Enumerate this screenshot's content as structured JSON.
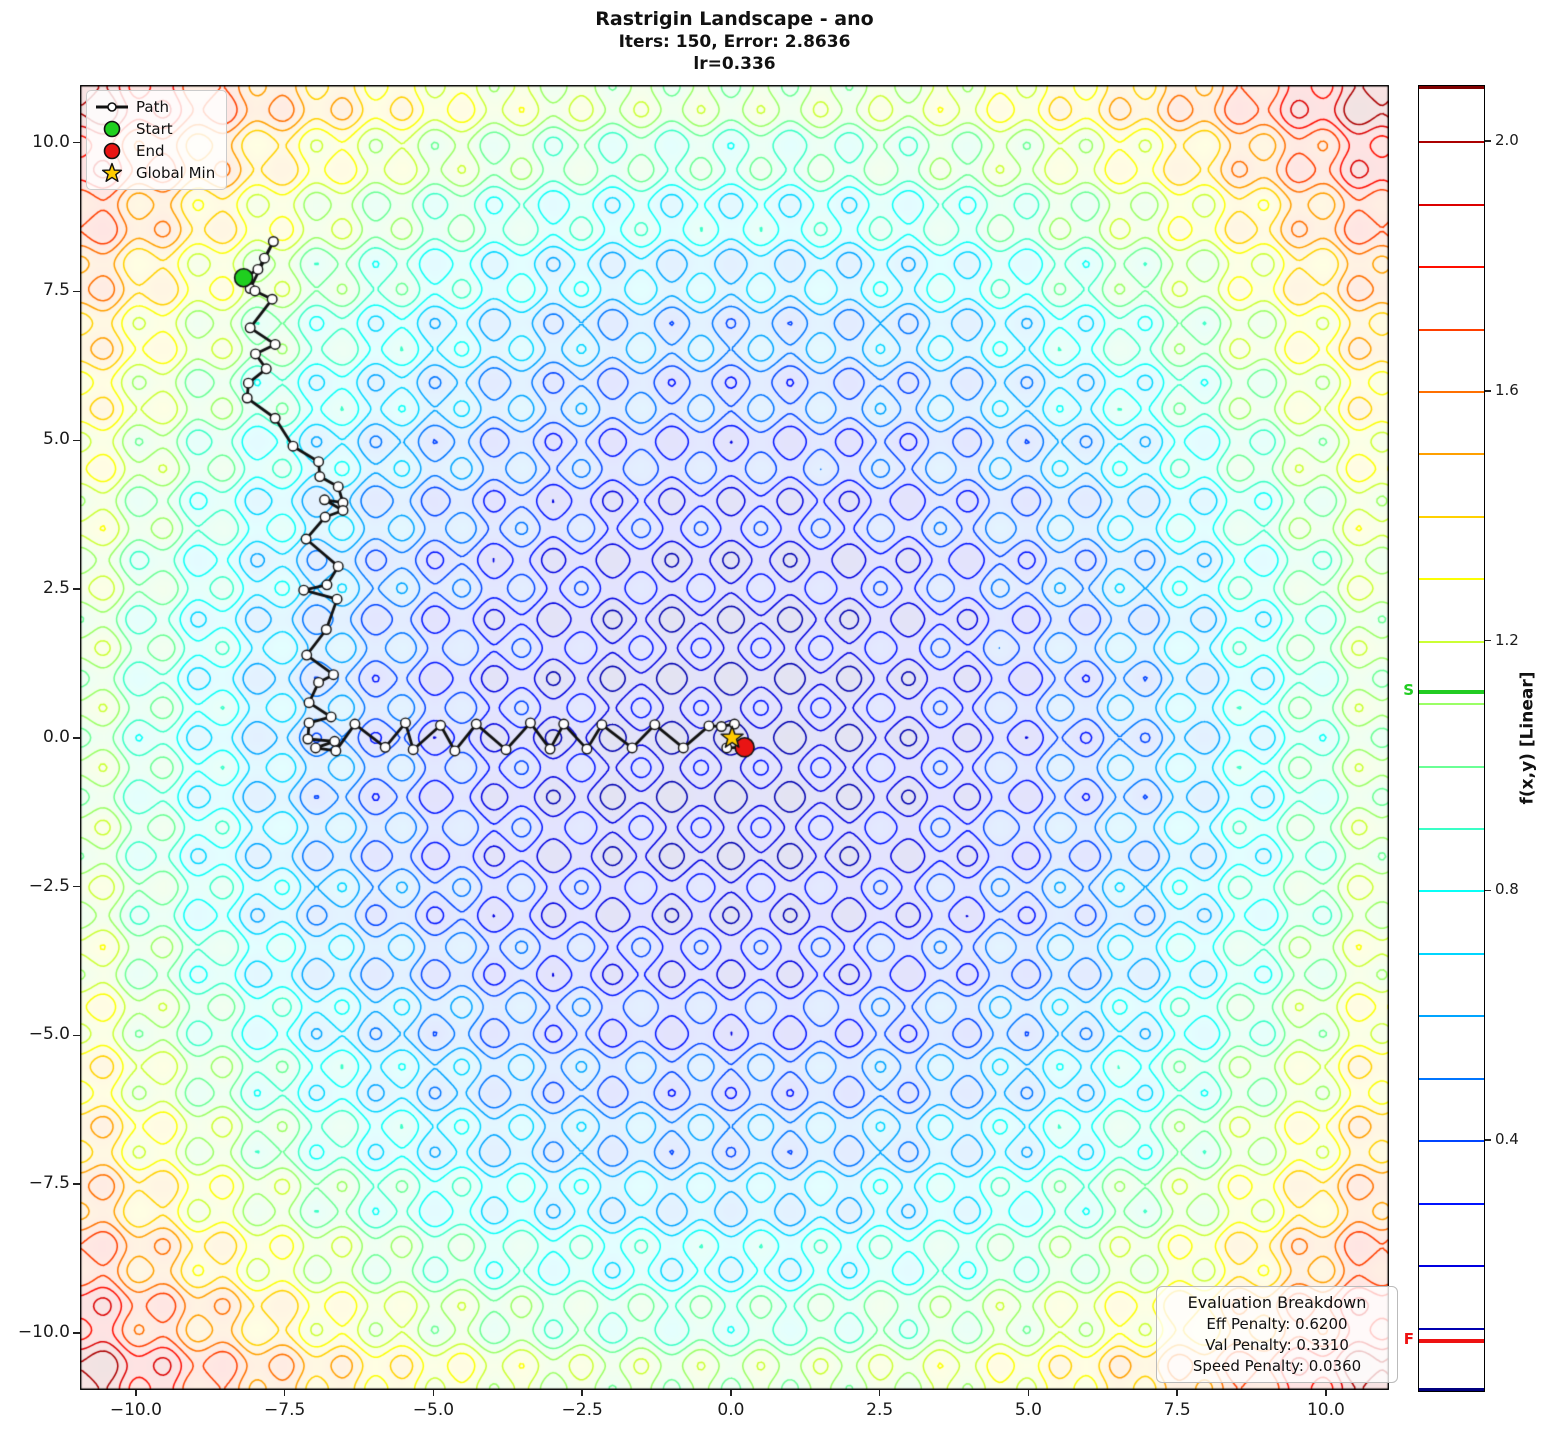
{
  "title": {
    "line1": "Rastrigin Landscape - ano",
    "line2": "Iters: 150, Error: 2.8636",
    "line3": "lr=0.336"
  },
  "legend": {
    "items": [
      {
        "label": "Path",
        "icon": "path-line-icon"
      },
      {
        "label": "Start",
        "icon": "start-dot-icon"
      },
      {
        "label": "End",
        "icon": "end-dot-icon"
      },
      {
        "label": "Global Min",
        "icon": "star-icon"
      }
    ]
  },
  "eval_box": {
    "title": "Evaluation Breakdown",
    "lines": [
      "Eff Penalty: 0.6200",
      "Val Penalty: 0.3310",
      "Speed Penalty: 0.0360"
    ]
  },
  "chart_data": {
    "type": "contour",
    "function": "rastrigin",
    "title": "Rastrigin Landscape - ano",
    "xlim": [
      -10.94,
      11.06
    ],
    "ylim": [
      -10.96,
      10.97
    ],
    "z_scale": 0.00799,
    "vmax": 2.09,
    "levels": [
      0.1,
      0.2,
      0.3,
      0.4,
      0.5,
      0.6,
      0.7,
      0.8,
      0.9,
      1.0,
      1.1,
      1.2,
      1.3,
      1.4,
      1.5,
      1.6,
      1.7,
      1.8,
      1.9,
      2.0
    ],
    "grid_on": false,
    "x_ticks": [
      -10,
      -7.5,
      -5,
      -2.5,
      0,
      2.5,
      5,
      7.5,
      10
    ],
    "x_tick_labels": [
      "−10.0",
      "−7.5",
      "−5.0",
      "−2.5",
      "0.0",
      "2.5",
      "5.0",
      "7.5",
      "10.0"
    ],
    "y_ticks": [
      10,
      7.5,
      5,
      2.5,
      0,
      -2.5,
      -5,
      -7.5,
      -10
    ],
    "y_tick_labels": [
      "10.0",
      "7.5",
      "5.0",
      "2.5",
      "0.0",
      "−2.5",
      "−5.0",
      "−7.5",
      "−10.0"
    ],
    "path": [
      [
        -8.19,
        7.73
      ],
      [
        -7.95,
        7.87
      ],
      [
        -7.84,
        8.06
      ],
      [
        -7.69,
        8.34
      ],
      [
        -8.08,
        7.55
      ],
      [
        -8.0,
        7.51
      ],
      [
        -7.71,
        7.37
      ],
      [
        -8.08,
        6.89
      ],
      [
        -7.66,
        6.61
      ],
      [
        -7.99,
        6.45
      ],
      [
        -7.81,
        6.2
      ],
      [
        -8.11,
        5.96
      ],
      [
        -8.13,
        5.71
      ],
      [
        -7.66,
        5.37
      ],
      [
        -7.36,
        4.9
      ],
      [
        -6.93,
        4.64
      ],
      [
        -6.91,
        4.39
      ],
      [
        -6.6,
        4.22
      ],
      [
        -6.52,
        3.95
      ],
      [
        -6.83,
        4.0
      ],
      [
        -6.52,
        3.82
      ],
      [
        -6.82,
        3.71
      ],
      [
        -7.14,
        3.34
      ],
      [
        -6.6,
        2.88
      ],
      [
        -6.79,
        2.57
      ],
      [
        -7.18,
        2.48
      ],
      [
        -6.62,
        2.33
      ],
      [
        -6.8,
        1.82
      ],
      [
        -7.13,
        1.39
      ],
      [
        -6.68,
        1.06
      ],
      [
        -6.93,
        0.93
      ],
      [
        -7.09,
        0.59
      ],
      [
        -6.72,
        0.35
      ],
      [
        -7.09,
        0.25
      ],
      [
        -7.11,
        -0.02
      ],
      [
        -6.66,
        -0.06
      ],
      [
        -6.98,
        -0.17
      ],
      [
        -6.64,
        -0.22
      ],
      [
        -6.32,
        0.23
      ],
      [
        -5.81,
        -0.16
      ],
      [
        -5.47,
        0.25
      ],
      [
        -5.34,
        -0.2
      ],
      [
        -4.88,
        0.21
      ],
      [
        -4.64,
        -0.22
      ],
      [
        -4.28,
        0.23
      ],
      [
        -3.78,
        -0.2
      ],
      [
        -3.37,
        0.25
      ],
      [
        -3.04,
        -0.19
      ],
      [
        -2.81,
        0.23
      ],
      [
        -2.42,
        -0.19
      ],
      [
        -2.17,
        0.22
      ],
      [
        -1.66,
        -0.17
      ],
      [
        -1.28,
        0.22
      ],
      [
        -0.8,
        -0.17
      ],
      [
        -0.37,
        0.2
      ],
      [
        -0.16,
        0.19
      ],
      [
        0.06,
        0.23
      ],
      [
        -0.07,
        -0.17
      ],
      [
        0.23,
        -0.16
      ]
    ],
    "start_point": [
      -8.19,
      7.73
    ],
    "end_point": [
      0.23,
      -0.16
    ],
    "global_min": [
      0.02,
      0.0
    ],
    "colors": {
      "path_line": "#111111",
      "marker_fill": "#ffffff",
      "marker_edge": "#111111",
      "start": "#1fcf1f",
      "end": "#e91414",
      "star": "#ffcc00",
      "wash_alpha": 0.11
    },
    "colorbar": {
      "label": "f(x,y) [Linear]",
      "vmin": 0.0,
      "vmax": 2.09,
      "ticks": [
        0.4,
        0.8,
        1.2,
        1.6,
        2.0
      ],
      "tick_labels": [
        "0.4",
        "0.8",
        "1.2",
        "1.6",
        "2.0"
      ],
      "start_marker": {
        "label": "S",
        "value": 1.12,
        "color": "#22cc22"
      },
      "final_marker": {
        "label": "F",
        "value": 0.08,
        "color": "#ee1111"
      },
      "top_cap_color": "#7f0000",
      "bottom_cap_color": "#00007f"
    }
  }
}
